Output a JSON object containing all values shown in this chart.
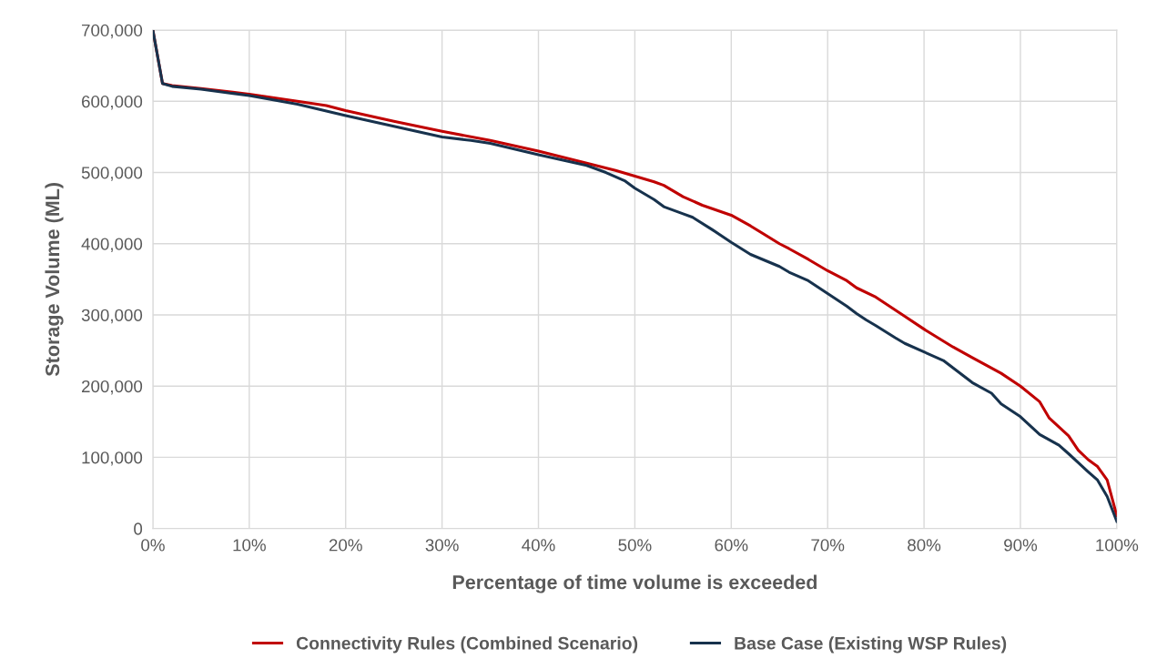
{
  "chart_data": {
    "type": "line",
    "xlabel": "Percentage of time volume is exceeded",
    "ylabel": "Storage Volume (ML)",
    "xlim": [
      0,
      100
    ],
    "ylim": [
      0,
      700000
    ],
    "xticks": [
      {
        "value": 0,
        "label": "0%"
      },
      {
        "value": 10,
        "label": "10%"
      },
      {
        "value": 20,
        "label": "20%"
      },
      {
        "value": 30,
        "label": "30%"
      },
      {
        "value": 40,
        "label": "40%"
      },
      {
        "value": 50,
        "label": "50%"
      },
      {
        "value": 60,
        "label": "60%"
      },
      {
        "value": 70,
        "label": "70%"
      },
      {
        "value": 80,
        "label": "80%"
      },
      {
        "value": 90,
        "label": "90%"
      },
      {
        "value": 100,
        "label": "100%"
      }
    ],
    "yticks": [
      0,
      {
        "value": 100000,
        "label": "100,000"
      },
      {
        "value": 200000,
        "label": "200,000"
      },
      {
        "value": 300000,
        "label": "300,000"
      },
      {
        "value": 400000,
        "label": "400,000"
      },
      {
        "value": 500000,
        "label": "500,000"
      },
      {
        "value": 600000,
        "label": "600,000"
      },
      {
        "value": 700000,
        "label": "700,000"
      }
    ],
    "grid": true,
    "legend": "bottom",
    "marker": "none",
    "line_style": "solid",
    "series": [
      {
        "name": "Connectivity Rules (Combined Scenario)",
        "color": "#c00000",
        "x": [
          0,
          1,
          2,
          5,
          10,
          15,
          18,
          20,
          25,
          30,
          35,
          40,
          45,
          48,
          50,
          52,
          53,
          55,
          57,
          60,
          62,
          65,
          66,
          68,
          70,
          72,
          73,
          75,
          78,
          80,
          83,
          85,
          88,
          90,
          92,
          93,
          95,
          96,
          97,
          98,
          99,
          100
        ],
        "values": [
          700000,
          625000,
          622000,
          618000,
          610000,
          600000,
          594000,
          587000,
          572000,
          558000,
          545000,
          530000,
          513000,
          503000,
          495000,
          487000,
          482000,
          466000,
          454000,
          440000,
          425000,
          400000,
          393000,
          378000,
          362000,
          348000,
          338000,
          325000,
          298000,
          280000,
          255000,
          240000,
          218000,
          200000,
          178000,
          155000,
          130000,
          110000,
          97000,
          87000,
          68000,
          18000
        ]
      },
      {
        "name": "Base Case (Existing WSP Rules)",
        "color": "#17324d",
        "x": [
          0,
          1,
          2,
          5,
          10,
          15,
          20,
          25,
          30,
          33,
          35,
          40,
          45,
          47,
          49,
          50,
          52,
          53,
          55,
          56,
          58,
          60,
          62,
          65,
          66,
          68,
          70,
          72,
          73,
          74,
          75,
          77,
          78,
          80,
          82,
          85,
          87,
          88,
          90,
          92,
          94,
          95,
          97,
          98,
          99,
          100
        ],
        "values": [
          700000,
          625000,
          621000,
          617000,
          608000,
          596000,
          580000,
          565000,
          550000,
          545000,
          541000,
          525000,
          510000,
          500000,
          488000,
          478000,
          462000,
          452000,
          442000,
          437000,
          420000,
          402000,
          385000,
          368000,
          360000,
          348000,
          330000,
          312000,
          302000,
          293000,
          285000,
          268000,
          260000,
          248000,
          236000,
          205000,
          190000,
          175000,
          157000,
          132000,
          117000,
          105000,
          80000,
          68000,
          45000,
          10000
        ]
      }
    ]
  }
}
